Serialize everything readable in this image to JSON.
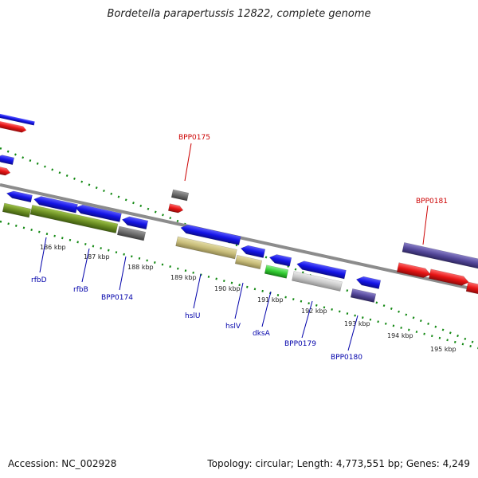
{
  "title": "Bordetella parapertussis 12822, complete genome",
  "footer": {
    "accession": "Accession: NC_002928",
    "summary": "Topology: circular; Length: 4,773,551 bp; Genes: 4,249"
  },
  "ticks": [
    "186 kbp",
    "187 kbp",
    "188 kbp",
    "189 kbp",
    "190 kbp",
    "191 kbp",
    "192 kbp",
    "193 kbp",
    "194 kbp",
    "195 kbp"
  ],
  "labels_top": [
    {
      "text": "BPP0175",
      "color": "#cc0000"
    },
    {
      "text": "BPP0181",
      "color": "#cc0000"
    }
  ],
  "labels_bottom": [
    {
      "text": "rfbD",
      "color": "#0000aa"
    },
    {
      "text": "rfbB",
      "color": "#0000aa"
    },
    {
      "text": "BPP0174",
      "color": "#0000aa"
    },
    {
      "text": "hslU",
      "color": "#0000aa"
    },
    {
      "text": "hslV",
      "color": "#0000aa"
    },
    {
      "text": "dksA",
      "color": "#0000aa"
    },
    {
      "text": "BPP0179",
      "color": "#0000aa"
    },
    {
      "text": "BPP0180",
      "color": "#0000aa"
    }
  ],
  "colors": {
    "forward_cds": "#1414e6",
    "reverse_cds": "#e61414",
    "backbone": "#8c8c8c",
    "gc_dots": "#118811",
    "olive": "#6b8e23",
    "khaki": "#c8bd7a",
    "grey": "#6d6d6d",
    "lightgrey": "#c8c8c8",
    "green": "#33cc33",
    "slate": "#54489a"
  }
}
